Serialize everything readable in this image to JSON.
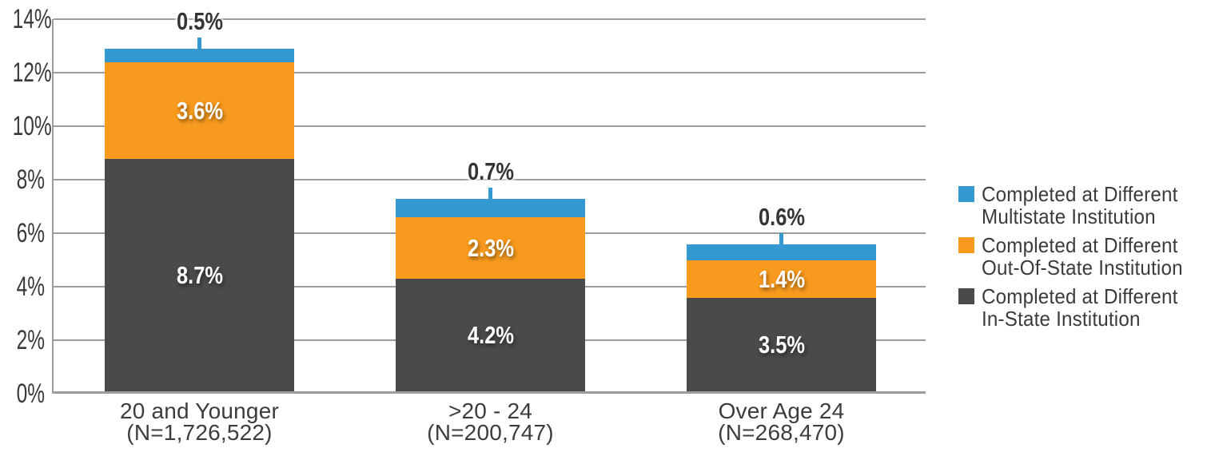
{
  "chart_data": {
    "type": "bar",
    "stacked": true,
    "categories": [
      "20 and Younger",
      ">20 - 24",
      "Over Age 24"
    ],
    "category_sublabels": [
      "(N=1,726,522)",
      "(N=200,747)",
      "(N=268,470)"
    ],
    "series": [
      {
        "name": "Completed at Different Multistate Institution",
        "color": "#3499D1",
        "values": [
          0.5,
          0.7,
          0.6
        ],
        "labels": [
          "0.5%",
          "0.7%",
          "0.6%"
        ]
      },
      {
        "name": "Completed at Different Out-Of-State Institution",
        "color": "#F89A1E",
        "values": [
          3.6,
          2.3,
          1.4
        ],
        "labels": [
          "3.6%",
          "2.3%",
          "1.4%"
        ]
      },
      {
        "name": "Completed at Different In-State Institution",
        "color": "#4A4A4A",
        "values": [
          8.7,
          4.2,
          3.5
        ],
        "labels": [
          "8.7%",
          "4.2%",
          "3.5%"
        ]
      }
    ],
    "ylim": [
      0,
      14
    ],
    "ytick_step": 2,
    "yticks": [
      "0%",
      "2%",
      "4%",
      "6%",
      "8%",
      "10%",
      "12%",
      "14%"
    ],
    "grid": "horizontal",
    "grid_color": "#9C9C9C",
    "legend_position": "right"
  },
  "legend": {
    "items": [
      {
        "color": "#3499D1",
        "line1": "Completed at Different",
        "line2": "Multistate Institution"
      },
      {
        "color": "#F89A1E",
        "line1": "Completed at Different",
        "line2": "Out-Of-State Institution"
      },
      {
        "color": "#4A4A4A",
        "line1": "Completed at Different",
        "line2": "In-State Institution"
      }
    ]
  }
}
